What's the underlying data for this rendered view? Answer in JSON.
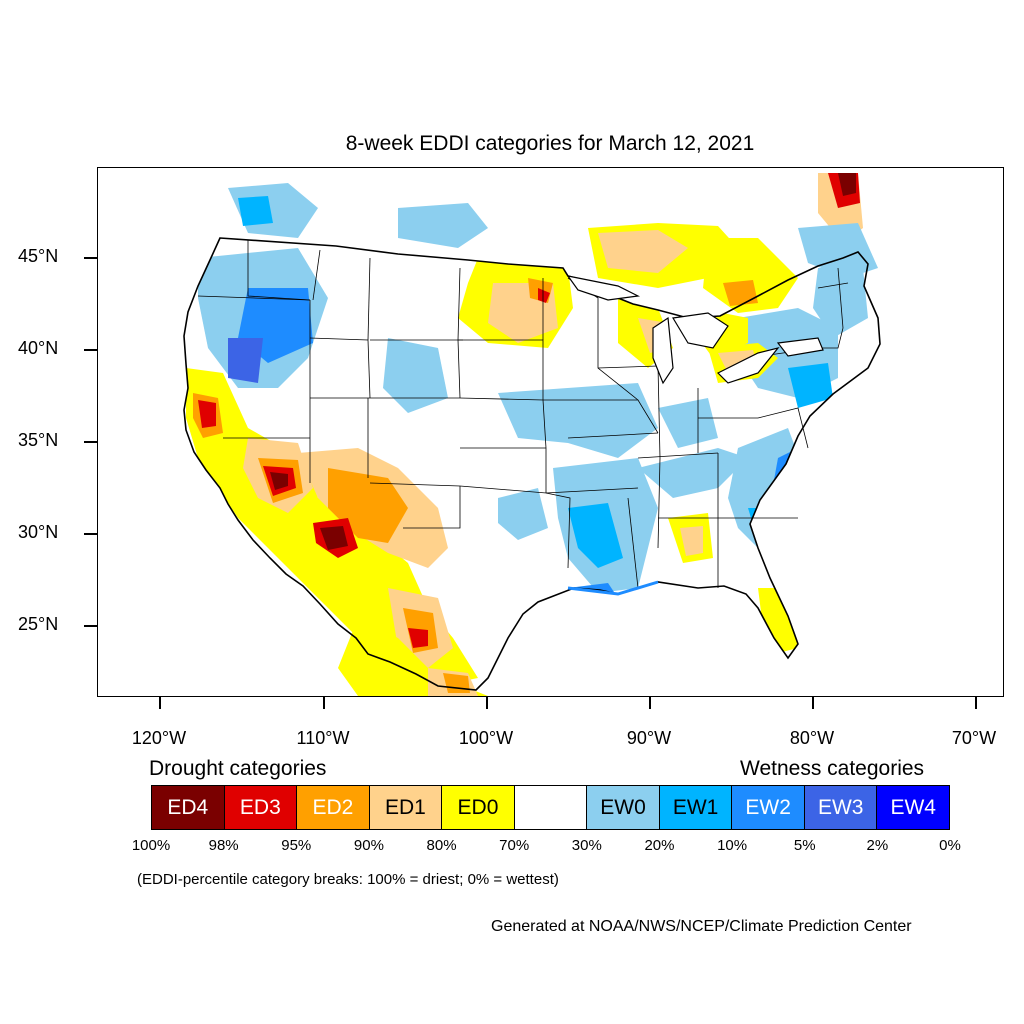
{
  "title": "8-week EDDI categories for March 12, 2021",
  "map": {
    "projection": "lat-lon",
    "lon_range": [
      -124,
      -68.5
    ],
    "lat_range": [
      21,
      50
    ],
    "lat_labels": [
      "45°N",
      "40°N",
      "35°N",
      "30°N",
      "25°N"
    ],
    "lat_values": [
      45,
      40,
      35,
      30,
      25
    ],
    "lon_labels": [
      "120°W",
      "110°W",
      "100°W",
      "90°W",
      "80°W",
      "70°W"
    ],
    "lon_values": [
      -120,
      -110,
      -100,
      -90,
      -80,
      -70
    ],
    "colors": {
      "ED4": "#7a0000",
      "ED3": "#e00000",
      "ED2": "#ffa000",
      "ED1": "#ffd28c",
      "ED0": "#ffff00",
      "EW0": "#8ccfef",
      "EW1": "#00b4ff",
      "EW2": "#1e8cff",
      "EW3": "#3c64e6",
      "EW4": "#0000ff"
    }
  },
  "legend": {
    "drought_heading": "Drought categories",
    "wetness_heading": "Wetness categories",
    "categories": [
      {
        "label": "ED4",
        "color": "#7a0000",
        "text_color": "#ffffff"
      },
      {
        "label": "ED3",
        "color": "#e00000",
        "text_color": "#ffffff"
      },
      {
        "label": "ED2",
        "color": "#ffa000",
        "text_color": "#ffffff"
      },
      {
        "label": "ED1",
        "color": "#ffd28c",
        "text_color": "#000000"
      },
      {
        "label": "ED0",
        "color": "#ffff00",
        "text_color": "#000000"
      },
      {
        "label": "",
        "color": "#ffffff",
        "text_color": "#000000"
      },
      {
        "label": "EW0",
        "color": "#8ccfef",
        "text_color": "#000000"
      },
      {
        "label": "EW1",
        "color": "#00b4ff",
        "text_color": "#000000"
      },
      {
        "label": "EW2",
        "color": "#1e8cff",
        "text_color": "#ffffff"
      },
      {
        "label": "EW3",
        "color": "#3c64e6",
        "text_color": "#ffffff"
      },
      {
        "label": "EW4",
        "color": "#0000ff",
        "text_color": "#ffffff"
      }
    ],
    "percentiles": [
      "100%",
      "98%",
      "95%",
      "90%",
      "80%",
      "70%",
      "30%",
      "20%",
      "10%",
      "5%",
      "2%",
      "0%"
    ]
  },
  "note": "(EDDI-percentile category breaks: 100% = driest; 0% = wettest)",
  "credit": "Generated at NOAA/NWS/NCEP/Climate Prediction Center"
}
